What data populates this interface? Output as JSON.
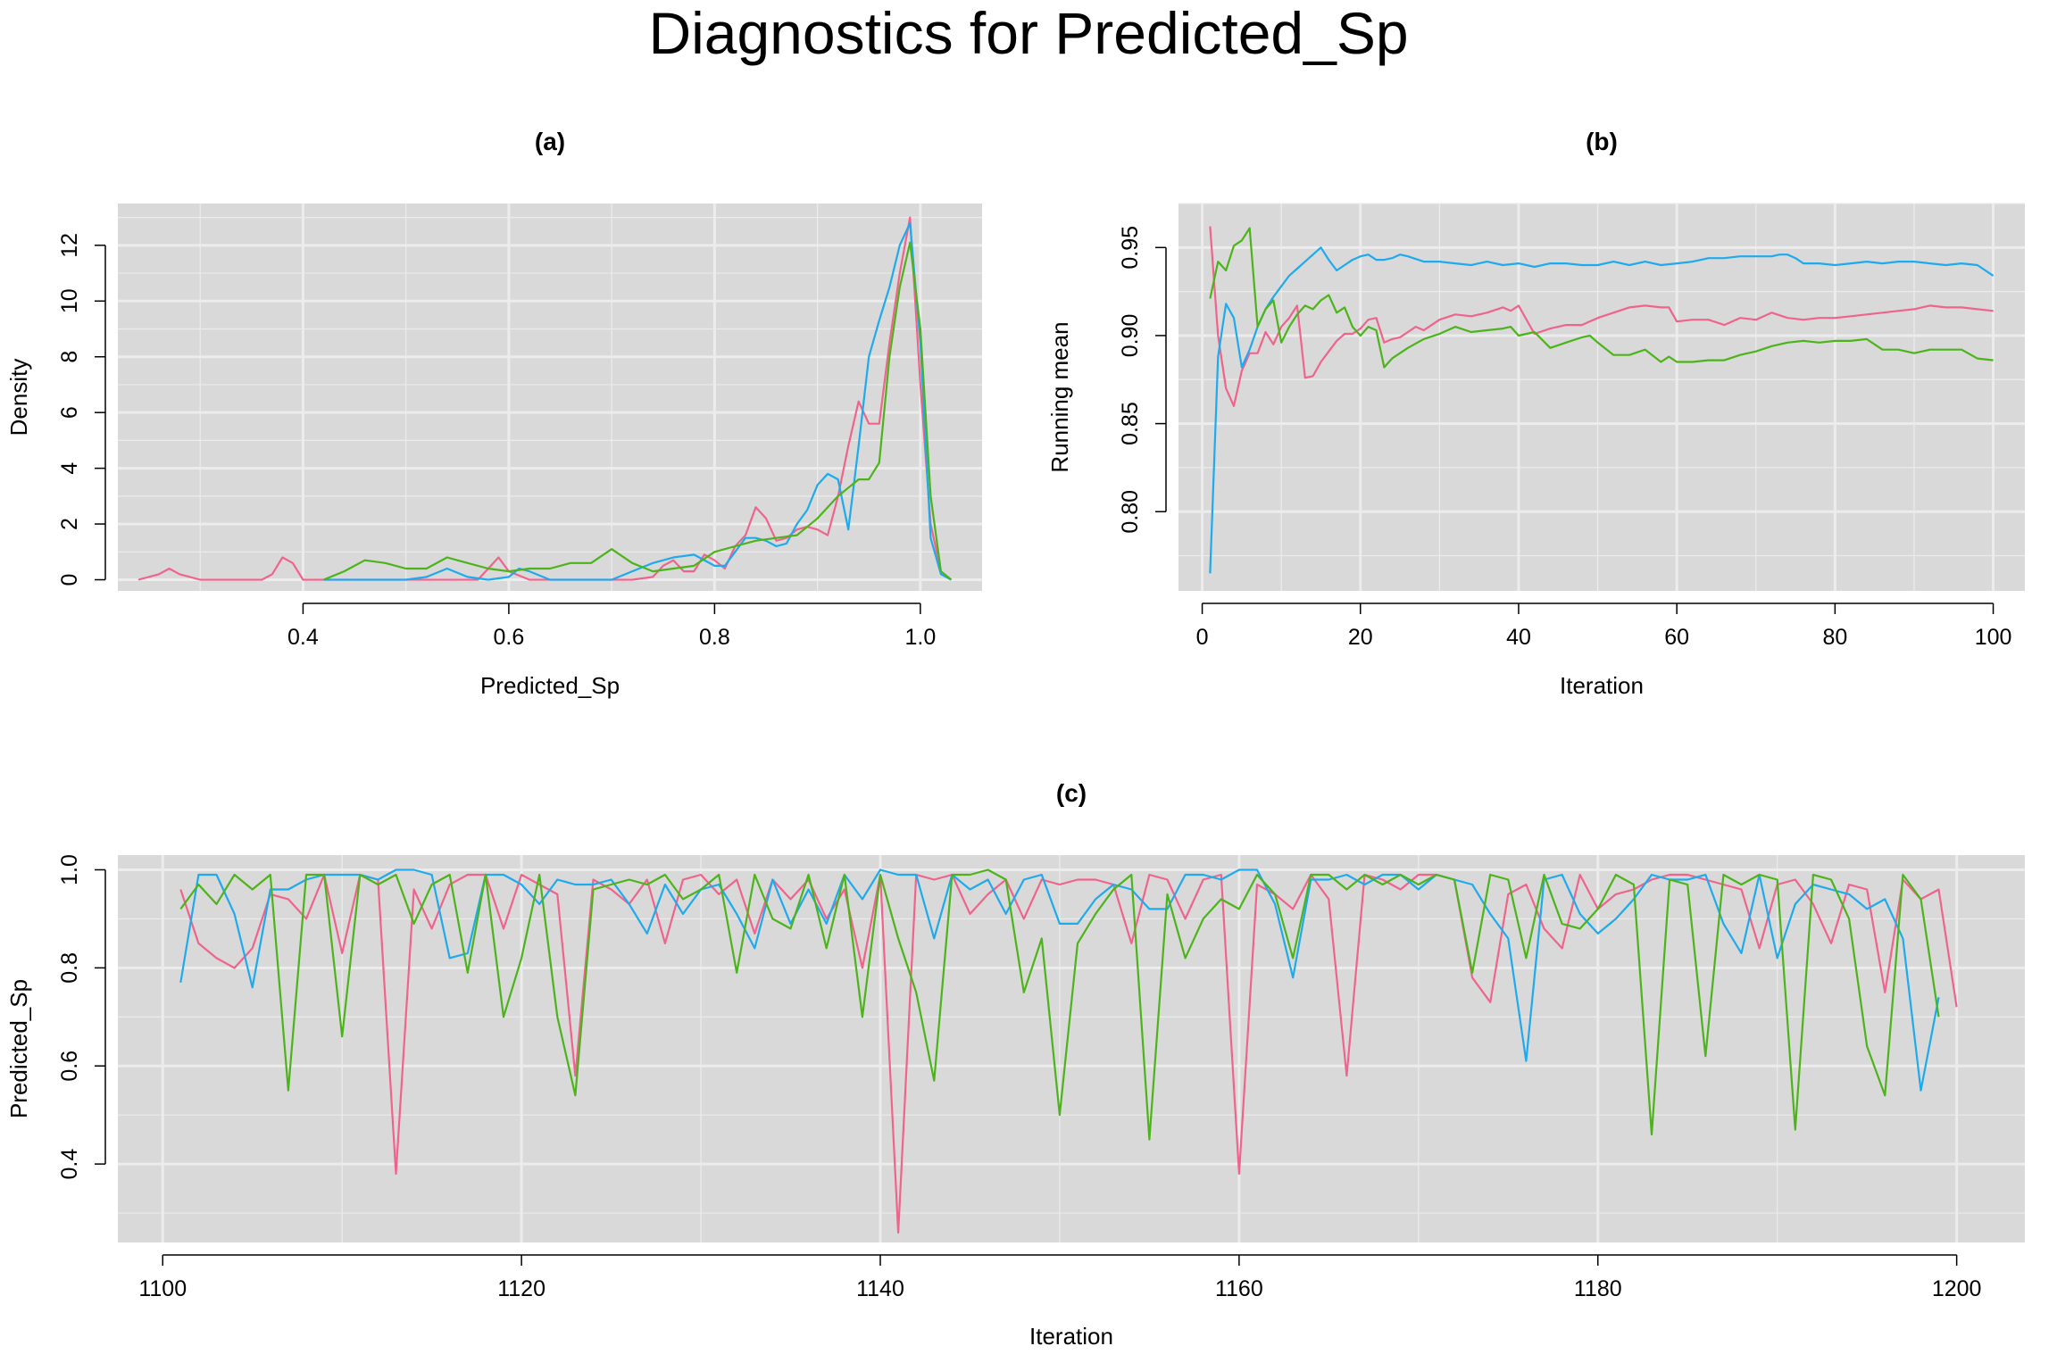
{
  "figure": {
    "title": "Diagnostics for Predicted_Sp"
  },
  "colors": {
    "chain1": "#f0648c",
    "chain2": "#1eaaee",
    "chain3": "#4cb41a"
  },
  "chart_data": [
    {
      "id": "a",
      "type": "line",
      "title": "(a)",
      "xlabel": "Predicted_Sp",
      "ylabel": "Density",
      "xlim": [
        0.22,
        1.06
      ],
      "ylim": [
        -0.4,
        13.5
      ],
      "xticks": [
        0.4,
        0.6,
        0.8,
        1.0
      ],
      "xtick_labels": [
        "0.4",
        "0.6",
        "0.8",
        "1.0"
      ],
      "yticks": [
        0,
        2,
        4,
        6,
        8,
        10,
        12
      ],
      "ytick_labels": [
        "0",
        "2",
        "4",
        "6",
        "8",
        "10",
        "12"
      ],
      "grid": true,
      "series": [
        {
          "x": [
            0.24,
            0.26,
            0.27,
            0.28,
            0.3,
            0.32,
            0.34,
            0.36,
            0.37,
            0.38,
            0.39,
            0.4,
            0.42,
            0.44,
            0.46,
            0.48,
            0.5,
            0.52,
            0.55,
            0.57,
            0.58,
            0.59,
            0.6,
            0.62,
            0.64,
            0.66,
            0.68,
            0.7,
            0.72,
            0.74,
            0.75,
            0.76,
            0.77,
            0.78,
            0.79,
            0.8,
            0.81,
            0.82,
            0.83,
            0.84,
            0.85,
            0.86,
            0.87,
            0.88,
            0.89,
            0.9,
            0.91,
            0.92,
            0.93,
            0.94,
            0.95,
            0.96,
            0.97,
            0.98,
            0.99,
            1.0,
            1.01,
            1.02,
            1.03
          ],
          "y": [
            0,
            0.2,
            0.4,
            0.2,
            0,
            0,
            0,
            0,
            0.2,
            0.8,
            0.6,
            0,
            0,
            0,
            0,
            0,
            0,
            0,
            0,
            0,
            0.4,
            0.8,
            0.3,
            0,
            0,
            0,
            0,
            0,
            0,
            0.1,
            0.5,
            0.7,
            0.3,
            0.3,
            0.9,
            0.7,
            0.4,
            1.2,
            1.6,
            2.6,
            2.2,
            1.4,
            1.5,
            1.8,
            1.9,
            1.8,
            1.6,
            3.0,
            4.8,
            6.4,
            5.6,
            5.6,
            8.5,
            11.0,
            13.0,
            7.0,
            2.0,
            0.3,
            0
          ]
        },
        {
          "x": [
            0.42,
            0.44,
            0.46,
            0.48,
            0.5,
            0.52,
            0.54,
            0.56,
            0.58,
            0.6,
            0.61,
            0.62,
            0.64,
            0.66,
            0.68,
            0.7,
            0.72,
            0.74,
            0.76,
            0.78,
            0.8,
            0.81,
            0.82,
            0.83,
            0.84,
            0.85,
            0.86,
            0.87,
            0.88,
            0.89,
            0.9,
            0.91,
            0.92,
            0.93,
            0.94,
            0.95,
            0.96,
            0.97,
            0.98,
            0.99,
            1.0,
            1.01,
            1.02,
            1.03
          ],
          "y": [
            0,
            0,
            0,
            0,
            0,
            0.1,
            0.4,
            0.1,
            0,
            0.1,
            0.4,
            0.3,
            0,
            0,
            0,
            0,
            0.3,
            0.6,
            0.8,
            0.9,
            0.5,
            0.5,
            1.0,
            1.5,
            1.5,
            1.4,
            1.2,
            1.3,
            2.0,
            2.5,
            3.4,
            3.8,
            3.6,
            1.8,
            4.8,
            8.0,
            9.3,
            10.5,
            12.0,
            12.8,
            8.5,
            1.5,
            0.2,
            0
          ]
        },
        {
          "x": [
            0.42,
            0.44,
            0.46,
            0.48,
            0.5,
            0.52,
            0.54,
            0.56,
            0.58,
            0.6,
            0.62,
            0.64,
            0.66,
            0.68,
            0.7,
            0.72,
            0.74,
            0.76,
            0.78,
            0.8,
            0.82,
            0.84,
            0.86,
            0.88,
            0.9,
            0.92,
            0.94,
            0.95,
            0.96,
            0.97,
            0.98,
            0.99,
            1.0,
            1.01,
            1.02,
            1.03
          ],
          "y": [
            0,
            0.3,
            0.7,
            0.6,
            0.4,
            0.4,
            0.8,
            0.6,
            0.4,
            0.3,
            0.4,
            0.4,
            0.6,
            0.6,
            1.1,
            0.6,
            0.3,
            0.4,
            0.5,
            1.0,
            1.2,
            1.4,
            1.5,
            1.6,
            2.2,
            3.0,
            3.6,
            3.6,
            4.2,
            8.0,
            10.5,
            12.1,
            9.0,
            3.0,
            0.3,
            0
          ]
        }
      ]
    },
    {
      "id": "b",
      "type": "line",
      "title": "(b)",
      "xlabel": "Iteration",
      "ylabel": "Running mean",
      "xlim": [
        -3,
        104
      ],
      "ylim": [
        0.755,
        0.975
      ],
      "xticks": [
        0,
        20,
        40,
        60,
        80,
        100
      ],
      "xtick_labels": [
        "0",
        "20",
        "40",
        "60",
        "80",
        "100"
      ],
      "yticks": [
        0.8,
        0.85,
        0.9,
        0.95
      ],
      "ytick_labels": [
        "0.80",
        "0.85",
        "0.90",
        "0.95"
      ],
      "grid": true,
      "series": [
        {
          "x": [
            1,
            2,
            3,
            4,
            5,
            6,
            7,
            8,
            9,
            10,
            11,
            12,
            13,
            14,
            15,
            16,
            17,
            18,
            19,
            20,
            21,
            22,
            23,
            24,
            25,
            26,
            27,
            28,
            29,
            30,
            32,
            34,
            36,
            38,
            39,
            40,
            42,
            44,
            46,
            48,
            50,
            52,
            54,
            56,
            58,
            59,
            60,
            62,
            64,
            66,
            68,
            70,
            72,
            74,
            76,
            78,
            80,
            82,
            84,
            86,
            88,
            90,
            92,
            94,
            96,
            98,
            100
          ],
          "y": [
            0.962,
            0.9,
            0.87,
            0.86,
            0.88,
            0.89,
            0.89,
            0.902,
            0.895,
            0.905,
            0.91,
            0.917,
            0.876,
            0.877,
            0.885,
            0.891,
            0.897,
            0.901,
            0.901,
            0.904,
            0.909,
            0.91,
            0.896,
            0.898,
            0.899,
            0.902,
            0.905,
            0.903,
            0.906,
            0.909,
            0.912,
            0.911,
            0.913,
            0.916,
            0.914,
            0.917,
            0.901,
            0.904,
            0.906,
            0.906,
            0.91,
            0.913,
            0.916,
            0.917,
            0.916,
            0.916,
            0.908,
            0.909,
            0.909,
            0.906,
            0.91,
            0.909,
            0.913,
            0.91,
            0.909,
            0.91,
            0.91,
            0.911,
            0.912,
            0.913,
            0.914,
            0.915,
            0.917,
            0.916,
            0.916,
            0.915,
            0.914
          ]
        },
        {
          "x": [
            1,
            2,
            3,
            4,
            5,
            6,
            7,
            8,
            9,
            10,
            11,
            12,
            13,
            14,
            15,
            16,
            17,
            18,
            19,
            20,
            21,
            22,
            23,
            24,
            25,
            26,
            28,
            30,
            32,
            34,
            36,
            38,
            40,
            42,
            44,
            46,
            48,
            50,
            52,
            54,
            56,
            58,
            60,
            62,
            64,
            66,
            68,
            70,
            72,
            73,
            74,
            75,
            76,
            78,
            80,
            82,
            84,
            86,
            88,
            90,
            92,
            94,
            96,
            98,
            100
          ],
          "y": [
            0.765,
            0.888,
            0.918,
            0.91,
            0.882,
            0.892,
            0.905,
            0.915,
            0.922,
            0.928,
            0.934,
            0.938,
            0.942,
            0.946,
            0.95,
            0.943,
            0.937,
            0.94,
            0.943,
            0.945,
            0.946,
            0.943,
            0.943,
            0.944,
            0.946,
            0.945,
            0.942,
            0.942,
            0.941,
            0.94,
            0.942,
            0.94,
            0.941,
            0.939,
            0.941,
            0.941,
            0.94,
            0.94,
            0.942,
            0.94,
            0.942,
            0.94,
            0.941,
            0.942,
            0.944,
            0.944,
            0.945,
            0.945,
            0.945,
            0.946,
            0.946,
            0.944,
            0.941,
            0.941,
            0.94,
            0.941,
            0.942,
            0.941,
            0.942,
            0.942,
            0.941,
            0.94,
            0.941,
            0.94,
            0.934
          ]
        },
        {
          "x": [
            1,
            2,
            3,
            4,
            5,
            6,
            7,
            8,
            9,
            10,
            11,
            12,
            13,
            14,
            15,
            16,
            17,
            18,
            19,
            20,
            21,
            22,
            23,
            24,
            26,
            28,
            30,
            32,
            34,
            36,
            38,
            39,
            40,
            42,
            44,
            46,
            48,
            49,
            50,
            52,
            54,
            56,
            58,
            59,
            60,
            62,
            64,
            66,
            68,
            70,
            72,
            74,
            76,
            78,
            80,
            82,
            84,
            86,
            88,
            90,
            92,
            94,
            96,
            98,
            100
          ],
          "y": [
            0.921,
            0.942,
            0.937,
            0.951,
            0.954,
            0.961,
            0.905,
            0.915,
            0.92,
            0.896,
            0.905,
            0.912,
            0.917,
            0.915,
            0.92,
            0.923,
            0.913,
            0.916,
            0.905,
            0.9,
            0.905,
            0.903,
            0.882,
            0.887,
            0.893,
            0.898,
            0.901,
            0.905,
            0.902,
            0.903,
            0.904,
            0.905,
            0.9,
            0.902,
            0.893,
            0.896,
            0.899,
            0.9,
            0.896,
            0.889,
            0.889,
            0.892,
            0.885,
            0.888,
            0.885,
            0.885,
            0.886,
            0.886,
            0.889,
            0.891,
            0.894,
            0.896,
            0.897,
            0.896,
            0.897,
            0.897,
            0.898,
            0.892,
            0.892,
            0.89,
            0.892,
            0.892,
            0.892,
            0.887,
            0.886
          ]
        }
      ]
    },
    {
      "id": "c",
      "type": "line",
      "title": "(c)",
      "xlabel": "Iteration",
      "ylabel": "Predicted_Sp",
      "xlim": [
        1097.5,
        1203.8
      ],
      "ylim": [
        0.24,
        1.03
      ],
      "xticks": [
        1100,
        1120,
        1140,
        1160,
        1180,
        1200
      ],
      "xtick_labels": [
        "1100",
        "1120",
        "1140",
        "1160",
        "1180",
        "1200"
      ],
      "yticks": [
        0.4,
        0.6,
        0.8,
        1.0
      ],
      "ytick_labels": [
        "0.4",
        "0.6",
        "0.8",
        "1.0"
      ],
      "grid": true,
      "x_start": 1101,
      "series": [
        {
          "y": [
            0.96,
            0.85,
            0.82,
            0.8,
            0.84,
            0.95,
            0.94,
            0.9,
            0.99,
            0.83,
            0.99,
            0.98,
            0.38,
            0.96,
            0.88,
            0.97,
            0.99,
            0.99,
            0.88,
            0.99,
            0.97,
            0.95,
            0.58,
            0.98,
            0.96,
            0.93,
            0.98,
            0.85,
            0.98,
            0.99,
            0.95,
            0.98,
            0.87,
            0.98,
            0.94,
            0.98,
            0.9,
            0.96,
            0.8,
            0.99,
            0.26,
            0.99,
            0.98,
            0.99,
            0.91,
            0.95,
            0.98,
            0.9,
            0.98,
            0.97,
            0.98,
            0.98,
            0.97,
            0.85,
            0.99,
            0.98,
            0.9,
            0.98,
            0.99,
            0.38,
            0.97,
            0.95,
            0.92,
            0.99,
            0.94,
            0.58,
            0.99,
            0.98,
            0.96,
            0.99,
            0.99,
            0.98,
            0.78,
            0.73,
            0.95,
            0.97,
            0.88,
            0.84,
            0.99,
            0.92,
            0.95,
            0.96,
            0.98,
            0.99,
            0.99,
            0.98,
            0.97,
            0.96,
            0.84,
            0.97,
            0.98,
            0.93,
            0.85,
            0.97,
            0.96,
            0.75,
            0.98,
            0.94,
            0.96,
            0.72
          ]
        },
        {
          "y": [
            0.77,
            0.99,
            0.99,
            0.91,
            0.76,
            0.96,
            0.96,
            0.98,
            0.99,
            0.99,
            0.99,
            0.98,
            1.0,
            1.0,
            0.99,
            0.82,
            0.83,
            0.99,
            0.99,
            0.97,
            0.93,
            0.98,
            0.97,
            0.97,
            0.98,
            0.93,
            0.87,
            0.97,
            0.91,
            0.96,
            0.97,
            0.91,
            0.84,
            0.98,
            0.89,
            0.96,
            0.89,
            0.99,
            0.94,
            1.0,
            0.99,
            0.99,
            0.86,
            0.99,
            0.96,
            0.98,
            0.91,
            0.98,
            0.99,
            0.89,
            0.89,
            0.94,
            0.97,
            0.96,
            0.92,
            0.92,
            0.99,
            0.99,
            0.98,
            1.0,
            1.0,
            0.93,
            0.78,
            0.98,
            0.98,
            0.99,
            0.97,
            0.99,
            0.99,
            0.96,
            0.99,
            0.98,
            0.97,
            0.91,
            0.86,
            0.61,
            0.98,
            0.99,
            0.91,
            0.87,
            0.9,
            0.94,
            0.99,
            0.98,
            0.98,
            0.99,
            0.89,
            0.83,
            0.99,
            0.82,
            0.93,
            0.97,
            0.96,
            0.95,
            0.92,
            0.94,
            0.86,
            0.55,
            0.74
          ]
        },
        {
          "y": [
            0.92,
            0.97,
            0.93,
            0.99,
            0.96,
            0.99,
            0.55,
            0.99,
            0.99,
            0.66,
            0.99,
            0.97,
            0.99,
            0.89,
            0.97,
            0.99,
            0.79,
            0.99,
            0.7,
            0.82,
            0.99,
            0.7,
            0.54,
            0.96,
            0.97,
            0.98,
            0.97,
            0.99,
            0.94,
            0.96,
            0.99,
            0.79,
            0.99,
            0.9,
            0.88,
            0.99,
            0.84,
            0.99,
            0.7,
            0.99,
            0.86,
            0.75,
            0.57,
            0.99,
            0.99,
            1.0,
            0.98,
            0.75,
            0.86,
            0.5,
            0.85,
            0.91,
            0.96,
            0.99,
            0.45,
            0.95,
            0.82,
            0.9,
            0.94,
            0.92,
            0.99,
            0.95,
            0.82,
            0.99,
            0.99,
            0.96,
            0.99,
            0.97,
            0.99,
            0.97,
            0.99,
            0.98,
            0.79,
            0.99,
            0.98,
            0.82,
            0.99,
            0.89,
            0.88,
            0.92,
            0.99,
            0.97,
            0.46,
            0.98,
            0.97,
            0.62,
            0.99,
            0.97,
            0.99,
            0.98,
            0.47,
            0.99,
            0.98,
            0.9,
            0.64,
            0.54,
            0.99,
            0.94,
            0.7
          ]
        }
      ]
    }
  ]
}
